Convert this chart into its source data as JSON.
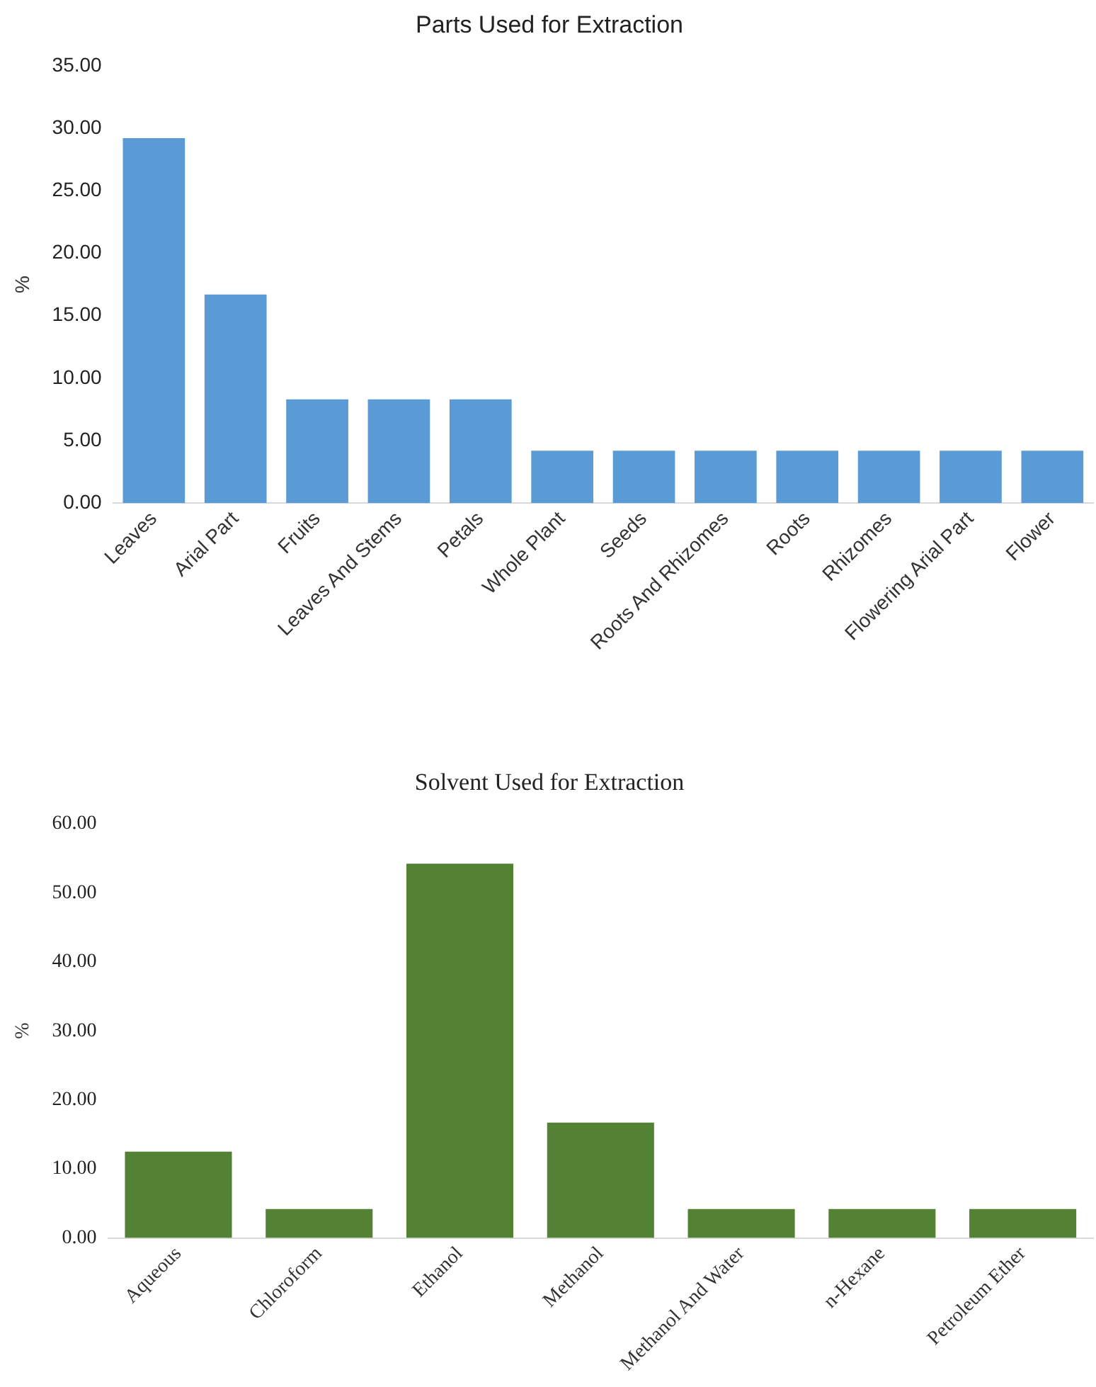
{
  "chart_data": [
    {
      "type": "bar",
      "title": "Parts Used for Extraction",
      "ylabel": "%",
      "categories": [
        "Leaves",
        "Arial Part",
        "Fruits",
        "Leaves And Stems",
        "Petals",
        "Whole Plant",
        "Seeds",
        "Roots And Rhizomes",
        "Roots",
        "Rhizomes",
        "Flowering Arial Part",
        "Flower"
      ],
      "values": [
        29.2,
        16.7,
        8.3,
        8.3,
        8.3,
        4.2,
        4.2,
        4.2,
        4.2,
        4.2,
        4.2,
        4.2
      ],
      "color": "#5b9bd5",
      "ylim": [
        0,
        35
      ],
      "yticks": [
        {
          "value": 0,
          "label": "0.00"
        },
        {
          "value": 5,
          "label": "5.00"
        },
        {
          "value": 10,
          "label": "10.00"
        },
        {
          "value": 15,
          "label": "15.00"
        },
        {
          "value": 20,
          "label": "20.00"
        },
        {
          "value": 25,
          "label": "25.00"
        },
        {
          "value": 30,
          "label": "30.00"
        },
        {
          "value": 35,
          "label": "35.00"
        }
      ],
      "grid": false,
      "legend": false
    },
    {
      "type": "bar",
      "title": "Solvent Used for Extraction",
      "ylabel": "%",
      "categories": [
        "Aqueous",
        "Chloroform",
        "Ethanol",
        "Methanol",
        "Methanol And Water",
        "n-Hexane",
        "Petroleum Ether"
      ],
      "values": [
        12.5,
        4.2,
        54.2,
        16.7,
        4.2,
        4.2,
        4.2
      ],
      "color": "#548235",
      "ylim": [
        0,
        60
      ],
      "yticks": [
        {
          "value": 0,
          "label": "0.00"
        },
        {
          "value": 10,
          "label": "10.00"
        },
        {
          "value": 20,
          "label": "20.00"
        },
        {
          "value": 30,
          "label": "30.00"
        },
        {
          "value": 40,
          "label": "40.00"
        },
        {
          "value": 50,
          "label": "50.00"
        },
        {
          "value": 60,
          "label": "60.00"
        }
      ],
      "grid": false,
      "legend": false
    }
  ]
}
